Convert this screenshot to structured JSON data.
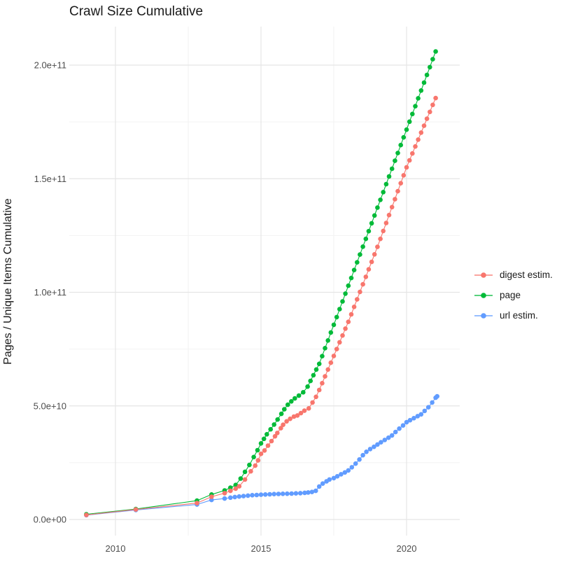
{
  "title": "Crawl Size Cumulative",
  "axes": {
    "y_title": "Pages / Unique Items Cumulative",
    "x_ticks": [
      {
        "label": "2010",
        "year": 2010
      },
      {
        "label": "2015",
        "year": 2015
      },
      {
        "label": "2020",
        "year": 2020
      }
    ],
    "y_ticks": [
      {
        "label": "0.0e+00",
        "value_e9": 0
      },
      {
        "label": "5.0e+10",
        "value_e9": 50
      },
      {
        "label": "1.0e+11",
        "value_e9": 100
      },
      {
        "label": "1.5e+11",
        "value_e9": 150
      },
      {
        "label": "2.0e+11",
        "value_e9": 200
      }
    ]
  },
  "legend": {
    "items": [
      {
        "label": "digest estim.",
        "color": "#F8766D"
      },
      {
        "label": "page",
        "color": "#00BA38"
      },
      {
        "label": "url estim.",
        "color": "#619CFF"
      }
    ]
  },
  "colors": {
    "digest": "#F8766D",
    "page": "#00BA38",
    "url": "#619CFF",
    "grid_major": "#e5e5e5",
    "grid_minor": "#f2f2f2",
    "tick_text": "#4d4d4d",
    "title_text": "#1a1a1a",
    "background": "#ffffff"
  },
  "chart_data": {
    "type": "line",
    "title": "Crawl Size Cumulative",
    "xlabel": "",
    "ylabel": "Pages / Unique Items Cumulative",
    "x_unit": "year",
    "y_unit": "count (values in units of 1e9 = billions)",
    "xlim": [
      2008.4,
      2021.7
    ],
    "ylim_e9": [
      -8,
      218
    ],
    "grid": true,
    "legend_position": "right",
    "marker": "point",
    "series": [
      {
        "name": "digest estim.",
        "color": "#F8766D",
        "points_year_e9": [
          [
            2009,
            2
          ],
          [
            2010.7,
            4.4
          ],
          [
            2012.8,
            7.2
          ],
          [
            2013.3,
            10
          ],
          [
            2013.75,
            11.6
          ],
          [
            2013.95,
            12.6
          ],
          [
            2014.13,
            13.6
          ],
          [
            2014.25,
            14.6
          ],
          [
            2014.45,
            17.6
          ],
          [
            2014.65,
            21.2
          ],
          [
            2014.8,
            23.7
          ],
          [
            2014.9,
            26
          ],
          [
            2015,
            28.9
          ],
          [
            2015.12,
            30.4
          ],
          [
            2015.24,
            32.5
          ],
          [
            2015.36,
            34.5
          ],
          [
            2015.48,
            36.6
          ],
          [
            2015.56,
            38.1
          ],
          [
            2015.68,
            40.2
          ],
          [
            2015.76,
            41.7
          ],
          [
            2015.88,
            43.2
          ],
          [
            2016,
            44.3
          ],
          [
            2016.13,
            45.3
          ],
          [
            2016.25,
            45.8
          ],
          [
            2016.37,
            46.8
          ],
          [
            2016.49,
            47.9
          ],
          [
            2016.64,
            48.9
          ],
          [
            2016.77,
            51.5
          ],
          [
            2016.89,
            54
          ],
          [
            2017,
            57
          ],
          [
            2017.1,
            60
          ],
          [
            2017.2,
            63
          ],
          [
            2017.3,
            66
          ],
          [
            2017.4,
            69
          ],
          [
            2017.5,
            72
          ],
          [
            2017.6,
            75
          ],
          [
            2017.7,
            78
          ],
          [
            2017.8,
            81
          ],
          [
            2017.9,
            84
          ],
          [
            2018,
            87
          ],
          [
            2018.1,
            90.3
          ],
          [
            2018.2,
            93.6
          ],
          [
            2018.3,
            96.9
          ],
          [
            2018.4,
            100.2
          ],
          [
            2018.5,
            103.5
          ],
          [
            2018.6,
            106.8
          ],
          [
            2018.7,
            110.1
          ],
          [
            2018.8,
            113.4
          ],
          [
            2018.9,
            116.7
          ],
          [
            2019,
            120
          ],
          [
            2019.1,
            123.5
          ],
          [
            2019.2,
            127
          ],
          [
            2019.3,
            130.5
          ],
          [
            2019.4,
            134
          ],
          [
            2019.5,
            137.5
          ],
          [
            2019.6,
            141
          ],
          [
            2019.7,
            144.5
          ],
          [
            2019.8,
            148
          ],
          [
            2019.9,
            151.5
          ],
          [
            2020,
            155
          ],
          [
            2020.1,
            158.1
          ],
          [
            2020.2,
            161.1
          ],
          [
            2020.3,
            164.2
          ],
          [
            2020.4,
            167.2
          ],
          [
            2020.5,
            170.3
          ],
          [
            2020.6,
            173.3
          ],
          [
            2020.7,
            176.4
          ],
          [
            2020.8,
            179.4
          ],
          [
            2020.9,
            182.5
          ],
          [
            2021,
            185.5
          ]
        ]
      },
      {
        "name": "page",
        "color": "#00BA38",
        "points_year_e9": [
          [
            2009,
            2.3
          ],
          [
            2010.7,
            4.6
          ],
          [
            2012.8,
            8.3
          ],
          [
            2013.3,
            11
          ],
          [
            2013.75,
            12.8
          ],
          [
            2013.95,
            14
          ],
          [
            2014.13,
            15.2
          ],
          [
            2014.3,
            18
          ],
          [
            2014.45,
            21
          ],
          [
            2014.6,
            24
          ],
          [
            2014.75,
            27.5
          ],
          [
            2014.88,
            30.5
          ],
          [
            2015,
            33.5
          ],
          [
            2015.1,
            35.5
          ],
          [
            2015.2,
            37.5
          ],
          [
            2015.33,
            39.7
          ],
          [
            2015.45,
            41.8
          ],
          [
            2015.57,
            44
          ],
          [
            2015.7,
            46.5
          ],
          [
            2015.8,
            48.5
          ],
          [
            2015.92,
            50.5
          ],
          [
            2016.04,
            52
          ],
          [
            2016.16,
            53.3
          ],
          [
            2016.3,
            54.5
          ],
          [
            2016.45,
            56
          ],
          [
            2016.6,
            58.5
          ],
          [
            2016.7,
            61
          ],
          [
            2016.8,
            63.5
          ],
          [
            2016.9,
            66
          ],
          [
            2017,
            68.5
          ],
          [
            2017.1,
            71.9
          ],
          [
            2017.2,
            75.4
          ],
          [
            2017.3,
            78.8
          ],
          [
            2017.4,
            82.3
          ],
          [
            2017.5,
            85.7
          ],
          [
            2017.6,
            89.1
          ],
          [
            2017.7,
            92.6
          ],
          [
            2017.8,
            96
          ],
          [
            2017.9,
            99.4
          ],
          [
            2018,
            102.9
          ],
          [
            2018.1,
            106.3
          ],
          [
            2018.2,
            109.8
          ],
          [
            2018.3,
            113.2
          ],
          [
            2018.4,
            116.6
          ],
          [
            2018.5,
            120.1
          ],
          [
            2018.6,
            123.5
          ],
          [
            2018.7,
            126.9
          ],
          [
            2018.8,
            130.4
          ],
          [
            2018.9,
            133.8
          ],
          [
            2019,
            137.3
          ],
          [
            2019.1,
            140.7
          ],
          [
            2019.2,
            144.1
          ],
          [
            2019.3,
            147.6
          ],
          [
            2019.4,
            151
          ],
          [
            2019.5,
            154.4
          ],
          [
            2019.6,
            157.9
          ],
          [
            2019.7,
            161.3
          ],
          [
            2019.8,
            164.8
          ],
          [
            2019.9,
            168.2
          ],
          [
            2020,
            171.6
          ],
          [
            2020.1,
            175.1
          ],
          [
            2020.2,
            178.5
          ],
          [
            2020.3,
            181.9
          ],
          [
            2020.4,
            185.4
          ],
          [
            2020.5,
            188.8
          ],
          [
            2020.6,
            192.3
          ],
          [
            2020.7,
            195.7
          ],
          [
            2020.8,
            199.1
          ],
          [
            2020.9,
            202.6
          ],
          [
            2021,
            206
          ]
        ]
      },
      {
        "name": "url estim.",
        "color": "#619CFF",
        "points_year_e9": [
          [
            2009,
            1.9
          ],
          [
            2010.7,
            4.2
          ],
          [
            2012.8,
            6.6
          ],
          [
            2013.3,
            8.6
          ],
          [
            2013.75,
            9.2
          ],
          [
            2013.95,
            9.6
          ],
          [
            2014.1,
            9.9
          ],
          [
            2014.25,
            10.1
          ],
          [
            2014.4,
            10.3
          ],
          [
            2014.55,
            10.5
          ],
          [
            2014.7,
            10.7
          ],
          [
            2014.85,
            10.8
          ],
          [
            2015,
            10.9
          ],
          [
            2015.15,
            11
          ],
          [
            2015.3,
            11.1
          ],
          [
            2015.45,
            11.2
          ],
          [
            2015.6,
            11.25
          ],
          [
            2015.75,
            11.3
          ],
          [
            2015.9,
            11.35
          ],
          [
            2016.05,
            11.4
          ],
          [
            2016.2,
            11.5
          ],
          [
            2016.35,
            11.6
          ],
          [
            2016.5,
            11.75
          ],
          [
            2016.62,
            11.9
          ],
          [
            2016.75,
            12.1
          ],
          [
            2016.88,
            12.6
          ],
          [
            2017,
            14.5
          ],
          [
            2017.12,
            15.8
          ],
          [
            2017.25,
            16.8
          ],
          [
            2017.35,
            17.6
          ],
          [
            2017.5,
            18.2
          ],
          [
            2017.62,
            19
          ],
          [
            2017.75,
            19.9
          ],
          [
            2017.88,
            20.7
          ],
          [
            2018,
            21.6
          ],
          [
            2018.12,
            23
          ],
          [
            2018.25,
            24.6
          ],
          [
            2018.38,
            26.4
          ],
          [
            2018.5,
            28.3
          ],
          [
            2018.62,
            29.8
          ],
          [
            2018.75,
            31
          ],
          [
            2018.88,
            32
          ],
          [
            2019,
            33
          ],
          [
            2019.12,
            34
          ],
          [
            2019.25,
            35
          ],
          [
            2019.38,
            36
          ],
          [
            2019.5,
            37
          ],
          [
            2019.62,
            38.5
          ],
          [
            2019.75,
            40
          ],
          [
            2019.88,
            41.4
          ],
          [
            2020,
            42.8
          ],
          [
            2020.12,
            43.7
          ],
          [
            2020.25,
            44.6
          ],
          [
            2020.38,
            45.5
          ],
          [
            2020.5,
            46.3
          ],
          [
            2020.62,
            47.8
          ],
          [
            2020.75,
            49.4
          ],
          [
            2020.88,
            51.5
          ],
          [
            2021,
            53.6
          ],
          [
            2021.05,
            54.2
          ]
        ]
      }
    ]
  }
}
